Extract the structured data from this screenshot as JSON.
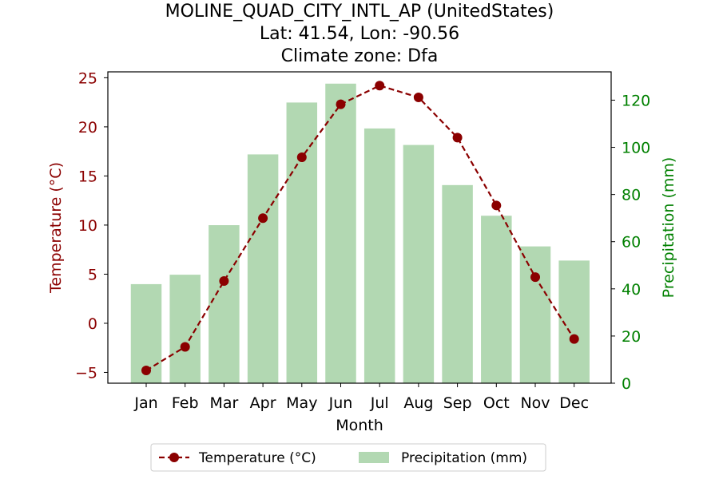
{
  "chart_data": {
    "type": "bar",
    "title": [
      "MOLINE_QUAD_CITY_INTL_AP (UnitedStates)",
      "Lat: 41.54, Lon: -90.56",
      "Climate zone: Dfa"
    ],
    "xlabel": "Month",
    "categories": [
      "Jan",
      "Feb",
      "Mar",
      "Apr",
      "May",
      "Jun",
      "Jul",
      "Aug",
      "Sep",
      "Oct",
      "Nov",
      "Dec"
    ],
    "left_axis": {
      "label": "Temperature (°C)",
      "ylim": [
        -6.1,
        25.6
      ],
      "ticks": [
        -5,
        0,
        5,
        10,
        15,
        20,
        25
      ],
      "tick_labels": [
        "−5",
        "0",
        "5",
        "10",
        "15",
        "20",
        "25"
      ],
      "color": "#8b0000"
    },
    "right_axis": {
      "label": "Precipitation (mm)",
      "ylim": [
        0,
        132
      ],
      "ticks": [
        0,
        20,
        40,
        60,
        80,
        100,
        120
      ],
      "tick_labels": [
        "0",
        "20",
        "40",
        "60",
        "80",
        "100",
        "120"
      ],
      "color": "#008000"
    },
    "series": [
      {
        "name": "Temperature (°C)",
        "type": "line",
        "axis": "left",
        "color": "#8b0000",
        "values": [
          -4.8,
          -2.4,
          4.3,
          10.7,
          16.9,
          22.3,
          24.2,
          23.0,
          18.9,
          12.0,
          4.7,
          -1.6
        ]
      },
      {
        "name": "Precipitation (mm)",
        "type": "bar",
        "axis": "right",
        "color": "#b2d8b2",
        "values": [
          42,
          46,
          67,
          97,
          119,
          127,
          108,
          101,
          84,
          71,
          58,
          52
        ]
      }
    ],
    "legend": {
      "placement": "bottom-center",
      "items": [
        "Temperature (°C)",
        "Precipitation (mm)"
      ]
    },
    "grid": false
  }
}
